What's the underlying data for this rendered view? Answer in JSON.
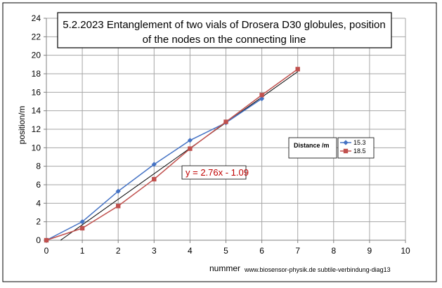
{
  "chart_data": {
    "type": "line",
    "title_line1": "5.2.2023 Entanglement of two vials of Drosera D30 globules, position",
    "title_line2": "of the nodes on the connecting line",
    "xlabel": "nummer",
    "ylabel": "position/m",
    "credit": "www.biosensor-physik.de subtile-verbindung-diag13",
    "xlim": [
      0,
      10
    ],
    "ylim": [
      0,
      24
    ],
    "x_ticks": [
      0,
      1,
      2,
      3,
      4,
      5,
      6,
      7,
      8,
      9,
      10
    ],
    "y_ticks": [
      0,
      2,
      4,
      6,
      8,
      10,
      12,
      14,
      16,
      18,
      20,
      22,
      24
    ],
    "grid": true,
    "legend_title": "Distance /m",
    "legend_placement": "right",
    "series": [
      {
        "name": "15.3",
        "color": "#4472C4",
        "marker": "diamond",
        "x": [
          0,
          1,
          2,
          3,
          4,
          5,
          6
        ],
        "y": [
          0,
          2.0,
          5.3,
          8.2,
          10.8,
          12.7,
          15.3
        ]
      },
      {
        "name": "18.5",
        "color": "#C0504D",
        "marker": "square",
        "x": [
          0,
          1,
          2,
          3,
          4,
          5,
          6,
          7
        ],
        "y": [
          0,
          1.3,
          3.7,
          6.6,
          9.9,
          12.8,
          15.7,
          18.5
        ]
      }
    ],
    "trendline": {
      "equation": "y = 2.76x - 1.09",
      "slope": 2.76,
      "intercept": -1.09,
      "x_range": [
        0.395,
        7
      ],
      "color": "#000000",
      "label_color": "#C00000"
    }
  }
}
